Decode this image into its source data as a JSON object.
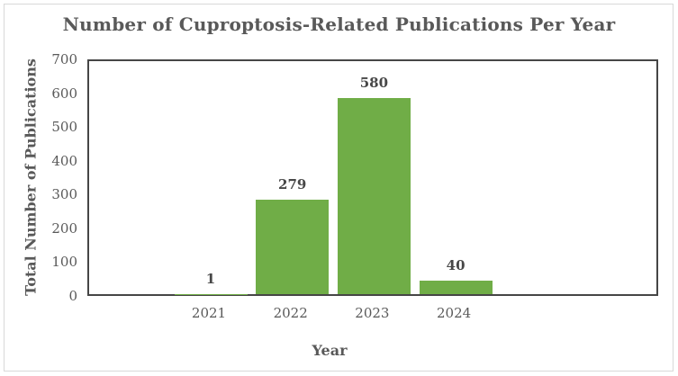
{
  "chart_data": {
    "type": "bar",
    "title": "Number of Cuproptosis-Related Publications Per Year",
    "xlabel": "Year",
    "ylabel": "Total Number of Publications",
    "categories": [
      "2021",
      "2022",
      "2023",
      "2024"
    ],
    "values": [
      1,
      279,
      580,
      40
    ],
    "data_labels": [
      "1",
      "279",
      "580",
      "40"
    ],
    "ylim": [
      0,
      700
    ],
    "ytick_step": 100,
    "yticks": [
      "0",
      "100",
      "200",
      "300",
      "400",
      "500",
      "600",
      "700"
    ],
    "bar_color": "#70AD47",
    "axis_color": "#464646",
    "text_color": "#595959",
    "grid": false,
    "legend": "none"
  }
}
